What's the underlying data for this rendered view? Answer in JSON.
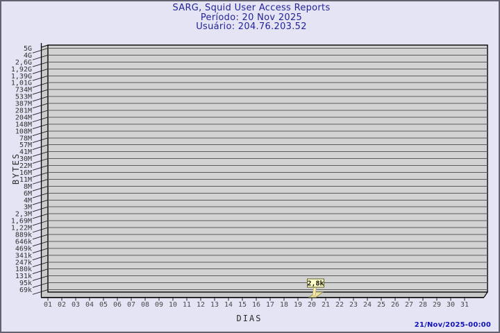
{
  "header": {
    "title": "SARG, Squid User Access Reports",
    "periodo": "Período: 20 Nov 2025",
    "usuario": "Usuário: 204.76.203.52"
  },
  "footer": {
    "timestamp": "21/Nov/2025-00:00"
  },
  "colors": {
    "page_bg": "#e4e4f4",
    "title_text": "#23239a",
    "timestamp_text": "#1111bb",
    "plot_bg": "#d2d2d2",
    "wall_fill": "#cbcbcb",
    "gridline": "#5a5a5a",
    "axis_line": "#000000",
    "bar_fill": "#efe3a0",
    "bar_edge": "#8a8a4a",
    "annotation_bg": "#ffffcc",
    "annotation_border": "#60602a"
  },
  "chart_data": {
    "type": "bar",
    "title": "SARG, Squid User Access Reports",
    "period": "20 Nov 2025",
    "user": "204.76.203.52",
    "xlabel": "DIAS",
    "ylabel": "BYTES",
    "grid": "horizontal",
    "scale": "log-like",
    "x_ticks": [
      "01",
      "02",
      "03",
      "04",
      "05",
      "06",
      "07",
      "08",
      "09",
      "10",
      "11",
      "12",
      "13",
      "14",
      "15",
      "16",
      "17",
      "18",
      "19",
      "20",
      "21",
      "22",
      "23",
      "24",
      "25",
      "26",
      "27",
      "28",
      "29",
      "30",
      "31"
    ],
    "y_ticks": [
      "5G",
      "4G",
      "2,6G",
      "1,92G",
      "1,39G",
      "1,01G",
      "734M",
      "533M",
      "387M",
      "281M",
      "204M",
      "148M",
      "108M",
      "78M",
      "57M",
      "41M",
      "30M",
      "22M",
      "16M",
      "11M",
      "8M",
      "6M",
      "4M",
      "3M",
      "2,3M",
      "1,69M",
      "1,22M",
      "889k",
      "646k",
      "469k",
      "341k",
      "247k",
      "180k",
      "131k",
      "95k",
      "69k"
    ],
    "series": [
      {
        "name": "204.76.203.52",
        "values": [
          0,
          0,
          0,
          0,
          0,
          0,
          0,
          0,
          0,
          0,
          0,
          0,
          0,
          0,
          0,
          0,
          0,
          0,
          0,
          2800,
          0,
          0,
          0,
          0,
          0,
          0,
          0,
          0,
          0,
          0,
          0
        ]
      }
    ],
    "annotations": [
      {
        "x": "20",
        "label": "2,8k",
        "value_bytes": 2800
      }
    ]
  }
}
